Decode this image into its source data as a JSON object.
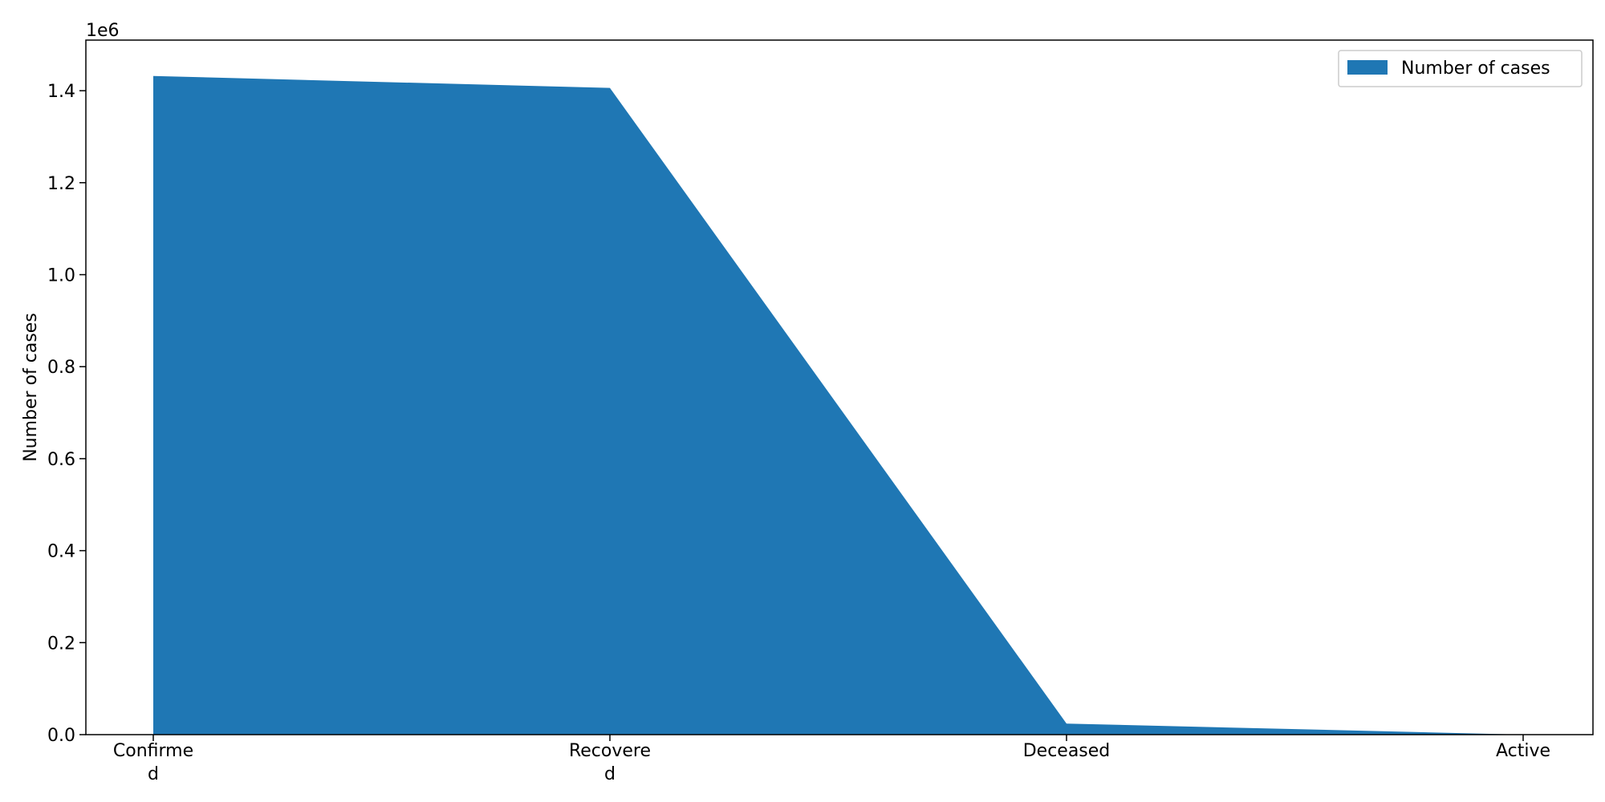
{
  "chart_data": {
    "type": "area",
    "categories": [
      "Confirmed",
      "Recovered",
      "Deceased",
      "Active"
    ],
    "category_label_lines": [
      [
        "Confirme",
        "d"
      ],
      [
        "Recovere",
        "d"
      ],
      [
        "Deceased"
      ],
      [
        "Active"
      ]
    ],
    "series": [
      {
        "name": "Number of cases",
        "values": [
          1432000,
          1406000,
          24000,
          0
        ],
        "color": "#1f77b4"
      }
    ],
    "ylabel": "Number of cases",
    "xlabel": "",
    "title": "",
    "ylim": [
      0,
      1510000
    ],
    "yticks": [
      0,
      200000,
      400000,
      600000,
      800000,
      1000000,
      1200000,
      1400000
    ],
    "ytick_labels": [
      "0.0",
      "0.2",
      "0.4",
      "0.6",
      "0.8",
      "1.0",
      "1.2",
      "1.4"
    ],
    "y_offset_label": "1e6",
    "legend_position": "upper right",
    "grid": false
  }
}
